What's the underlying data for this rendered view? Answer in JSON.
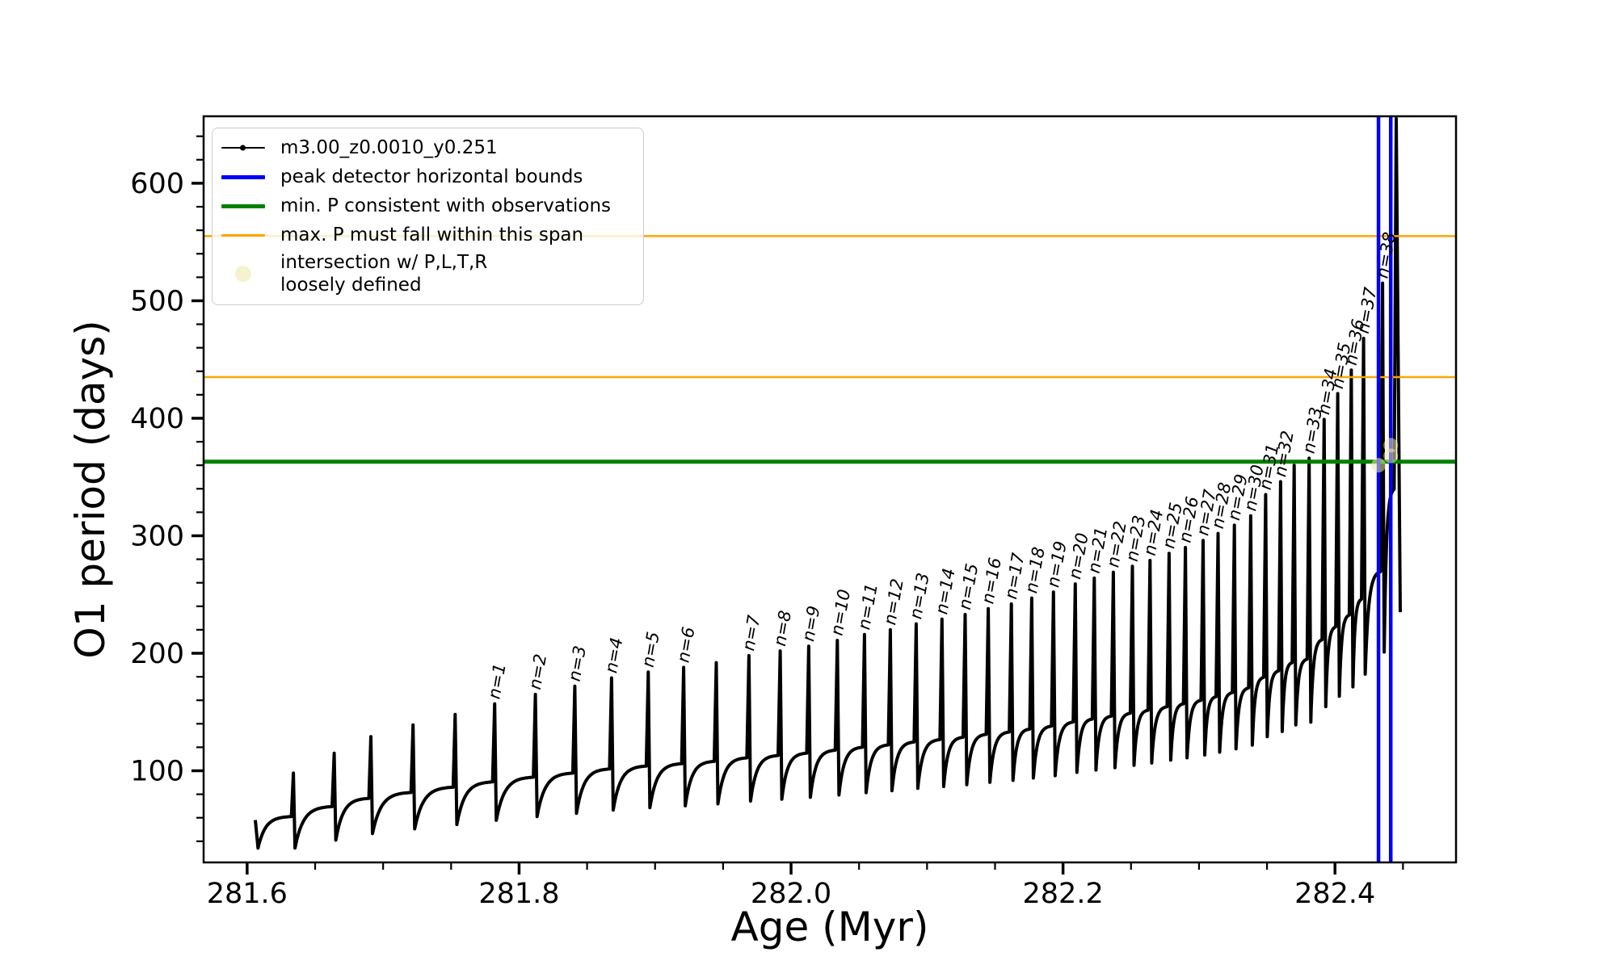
{
  "chart_data": {
    "type": "line",
    "title": "",
    "xlabel": "Age (Myr)",
    "ylabel": "O1 period (days)",
    "xlim": [
      281.568,
      282.489
    ],
    "ylim": [
      22,
      657
    ],
    "x_major_ticks": [
      281.6,
      281.8,
      282.0,
      282.2,
      282.4
    ],
    "x_major_tick_labels": [
      "281.6",
      "281.8",
      "282.0",
      "282.2",
      "282.4"
    ],
    "x_minor_tick_step": 0.05,
    "y_major_ticks": [
      100,
      200,
      300,
      400,
      500,
      600
    ],
    "y_major_tick_labels": [
      "100",
      "200",
      "300",
      "400",
      "500",
      "600"
    ],
    "y_minor_tick_step": 20,
    "grid": false,
    "legend_position": "upper-left",
    "series": [
      {
        "name": "m3.00_z0.0010_y0.251",
        "type": "line+markers",
        "color": "#000000",
        "description": "O1 pulsation period track vs age: slow saturating rise between thermal-pulse spikes; spikes labeled n=1 through n=38; final spike clipped at top of axes",
        "start": {
          "age": 281.606,
          "period": 58
        },
        "end": {
          "age": 282.448,
          "period": 235
        },
        "cycle_shape": {
          "min_fraction_of_peak": 0.4,
          "min_offset_days": -5,
          "shoulder_fraction_of_peak": 0.5,
          "shoulder_offset_days": 12,
          "rise_sharpness": 4.5
        },
        "peaks": [
          {
            "age": 281.634,
            "period": 98,
            "label": null
          },
          {
            "age": 281.664,
            "period": 115,
            "label": null
          },
          {
            "age": 281.691,
            "period": 129,
            "label": null
          },
          {
            "age": 281.722,
            "period": 139,
            "label": null
          },
          {
            "age": 281.753,
            "period": 148,
            "label": null
          },
          {
            "age": 281.782,
            "period": 157,
            "label": "n=1"
          },
          {
            "age": 281.812,
            "period": 165,
            "label": "n=2"
          },
          {
            "age": 281.841,
            "period": 172,
            "label": "n=3"
          },
          {
            "age": 281.868,
            "period": 179,
            "label": "n=4"
          },
          {
            "age": 281.895,
            "period": 184,
            "label": "n=5"
          },
          {
            "age": 281.921,
            "period": 188,
            "label": "n=6"
          },
          {
            "age": 281.945,
            "period": 192,
            "label": null
          },
          {
            "age": 281.969,
            "period": 198,
            "label": "n=7"
          },
          {
            "age": 281.992,
            "period": 202,
            "label": "n=8"
          },
          {
            "age": 282.013,
            "period": 206,
            "label": "n=9"
          },
          {
            "age": 282.034,
            "period": 211,
            "label": "n=10"
          },
          {
            "age": 282.054,
            "period": 216,
            "label": "n=11"
          },
          {
            "age": 282.073,
            "period": 220,
            "label": "n=12"
          },
          {
            "age": 282.092,
            "period": 225,
            "label": "n=13"
          },
          {
            "age": 282.111,
            "period": 229,
            "label": "n=14"
          },
          {
            "age": 282.128,
            "period": 233,
            "label": "n=15"
          },
          {
            "age": 282.145,
            "period": 238,
            "label": "n=16"
          },
          {
            "age": 282.162,
            "period": 242,
            "label": "n=17"
          },
          {
            "age": 282.177,
            "period": 247,
            "label": "n=18"
          },
          {
            "age": 282.193,
            "period": 252,
            "label": "n=19"
          },
          {
            "age": 282.209,
            "period": 259,
            "label": "n=20"
          },
          {
            "age": 282.223,
            "period": 264,
            "label": "n=21"
          },
          {
            "age": 282.237,
            "period": 269,
            "label": "n=22"
          },
          {
            "age": 282.251,
            "period": 274,
            "label": "n=23"
          },
          {
            "age": 282.264,
            "period": 279,
            "label": "n=24"
          },
          {
            "age": 282.278,
            "period": 285,
            "label": "n=25"
          },
          {
            "age": 282.29,
            "period": 290,
            "label": "n=26"
          },
          {
            "age": 282.303,
            "period": 296,
            "label": "n=27"
          },
          {
            "age": 282.314,
            "period": 302,
            "label": "n=28"
          },
          {
            "age": 282.326,
            "period": 309,
            "label": "n=29"
          },
          {
            "age": 282.338,
            "period": 317,
            "label": "n=30"
          },
          {
            "age": 282.349,
            "period": 335,
            "label": "n=31"
          },
          {
            "age": 282.36,
            "period": 346,
            "label": "n=32"
          },
          {
            "age": 282.37,
            "period": 360,
            "label": null
          },
          {
            "age": 282.381,
            "period": 366,
            "label": "n=33"
          },
          {
            "age": 282.392,
            "period": 399,
            "label": "n=34"
          },
          {
            "age": 282.402,
            "period": 421,
            "label": "n=35"
          },
          {
            "age": 282.412,
            "period": 441,
            "label": "n=36"
          },
          {
            "age": 282.421,
            "period": 468,
            "label": "n=37"
          },
          {
            "age": 282.435,
            "period": 515,
            "label": "n=38"
          },
          {
            "age": 282.445,
            "period": 655,
            "label": null
          }
        ]
      },
      {
        "name": "peak detector horizontal bounds",
        "type": "vline",
        "color": "#0000ff",
        "x_values": [
          282.432,
          282.441
        ]
      },
      {
        "name": "min. P consistent with observations",
        "type": "hline",
        "color": "#008000",
        "y_values": [
          363
        ]
      },
      {
        "name": "max. P must fall within this span",
        "type": "hline",
        "color": "#ffa500",
        "y_values": [
          435,
          555
        ]
      },
      {
        "name": "intersection w/ P,L,T,R\nloosely defined",
        "type": "scatter",
        "color": "#eee8aa",
        "opacity": 0.55,
        "points": [
          {
            "age": 282.432,
            "period": 360
          },
          {
            "age": 282.441,
            "period": 368
          },
          {
            "age": 282.441,
            "period": 377
          }
        ]
      }
    ]
  }
}
